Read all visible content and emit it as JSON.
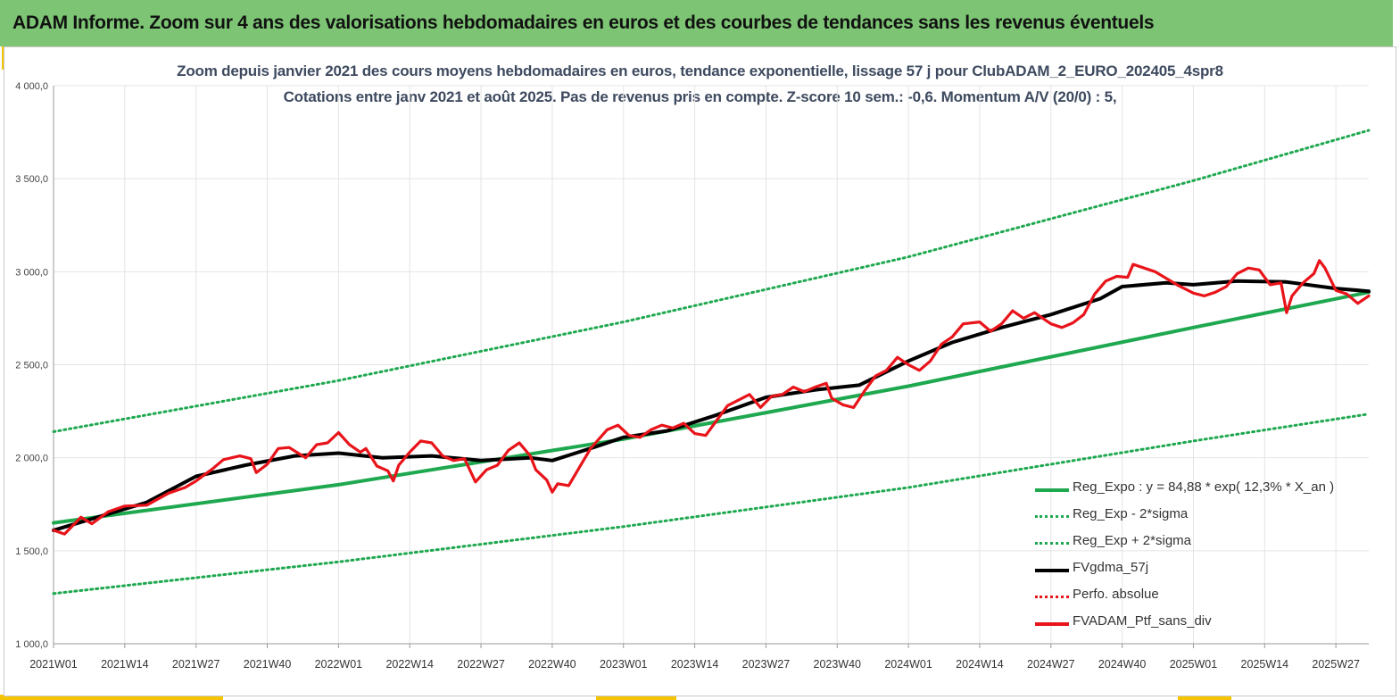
{
  "header": {
    "title": "ADAM Informe. Zoom sur 4 ans des valorisations hebdomadaires en euros et des courbes de tendances sans les revenus éventuels"
  },
  "colors": {
    "banner": "#7dc574",
    "accent": "#f5c400",
    "trend_green": "#1ea84f",
    "black_ma": "#000000",
    "red_series": "#e8141a"
  },
  "chart_data": {
    "type": "line",
    "title_line1": "Zoom depuis janvier 2021 des cours moyens hebdomadaires en euros, tendance exponentielle, lissage 57 j pour ClubADAM_2_EURO_202405_4spr8",
    "title_line2": "Cotations entre janv 2021 et août 2025. Pas de revenus pris en compte. Z-score 10 sem.: -0,6. Momentum A/V (20/0) : 5,",
    "ylim": [
      1000,
      4000
    ],
    "y_ticks": [
      "1 000,0",
      "1 500,0",
      "2 000,0",
      "2 500,0",
      "3 000,0",
      "3 500,0",
      "4 000,0"
    ],
    "x_ticks": [
      "2021W01",
      "2021W14",
      "2021W27",
      "2021W40",
      "2022W01",
      "2022W14",
      "2022W27",
      "2022W40",
      "2023W01",
      "2023W14",
      "2023W27",
      "2023W40",
      "2024W01",
      "2024W14",
      "2024W27",
      "2024W40",
      "2025W01",
      "2025W14",
      "2025W27"
    ],
    "x_start": "2021W01",
    "x_end": "2025W33",
    "grid": true,
    "legend_position": "bottom-right",
    "series": [
      {
        "name": "Reg_Expo : y = 84,88 * exp( 12,3% *  X_an )",
        "style": "solid-thick",
        "color": "#1ea84f",
        "points": [
          [
            "2021W01",
            1650
          ],
          [
            "2022W01",
            1855
          ],
          [
            "2023W01",
            2100
          ],
          [
            "2024W01",
            2385
          ],
          [
            "2025W01",
            2700
          ],
          [
            "2025W33",
            2890
          ]
        ]
      },
      {
        "name": "Reg_Exp - 2*sigma",
        "style": "dotted",
        "color": "#1ea84f",
        "points": [
          [
            "2021W01",
            1270
          ],
          [
            "2022W01",
            1440
          ],
          [
            "2023W01",
            1630
          ],
          [
            "2024W01",
            1840
          ],
          [
            "2025W01",
            2090
          ],
          [
            "2025W33",
            2235
          ]
        ]
      },
      {
        "name": "Reg_Exp + 2*sigma",
        "style": "dotted",
        "color": "#1ea84f",
        "points": [
          [
            "2021W01",
            2140
          ],
          [
            "2022W01",
            2415
          ],
          [
            "2023W01",
            2730
          ],
          [
            "2024W01",
            3080
          ],
          [
            "2025W01",
            3490
          ],
          [
            "2025W33",
            3760
          ]
        ]
      },
      {
        "name": "FVgdma_57j",
        "style": "solid-thick",
        "color": "#000000",
        "points": [
          [
            "2021W01",
            1610
          ],
          [
            "2021W09",
            1680
          ],
          [
            "2021W18",
            1760
          ],
          [
            "2021W27",
            1900
          ],
          [
            "2021W36",
            1960
          ],
          [
            "2021W45",
            2010
          ],
          [
            "2022W01",
            2025
          ],
          [
            "2022W09",
            2000
          ],
          [
            "2022W18",
            2010
          ],
          [
            "2022W27",
            1985
          ],
          [
            "2022W36",
            2000
          ],
          [
            "2022W40",
            1985
          ],
          [
            "2022W48",
            2060
          ],
          [
            "2023W01",
            2110
          ],
          [
            "2023W09",
            2145
          ],
          [
            "2023W18",
            2230
          ],
          [
            "2023W27",
            2325
          ],
          [
            "2023W36",
            2365
          ],
          [
            "2023W44",
            2390
          ],
          [
            "2024W01",
            2520
          ],
          [
            "2024W09",
            2620
          ],
          [
            "2024W18",
            2700
          ],
          [
            "2024W27",
            2770
          ],
          [
            "2024W36",
            2855
          ],
          [
            "2024W40",
            2920
          ],
          [
            "2024W48",
            2940
          ],
          [
            "2025W01",
            2930
          ],
          [
            "2025W09",
            2950
          ],
          [
            "2025W18",
            2945
          ],
          [
            "2025W27",
            2910
          ],
          [
            "2025W33",
            2895
          ]
        ]
      },
      {
        "name": "Perfo. absolue",
        "style": "dotted",
        "color": "#e8141a",
        "points": []
      },
      {
        "name": "FVADAM_Ptf_sans_div",
        "style": "solid-thick",
        "color": "#e8141a",
        "points": [
          [
            "2021W01",
            1610
          ],
          [
            "2021W03",
            1590
          ],
          [
            "2021W06",
            1680
          ],
          [
            "2021W08",
            1645
          ],
          [
            "2021W11",
            1710
          ],
          [
            "2021W14",
            1740
          ],
          [
            "2021W18",
            1745
          ],
          [
            "2021W22",
            1810
          ],
          [
            "2021W25",
            1840
          ],
          [
            "2021W27",
            1875
          ],
          [
            "2021W30",
            1940
          ],
          [
            "2021W32",
            1990
          ],
          [
            "2021W35",
            2010
          ],
          [
            "2021W37",
            1995
          ],
          [
            "2021W38",
            1920
          ],
          [
            "2021W40",
            1965
          ],
          [
            "2021W42",
            2050
          ],
          [
            "2021W44",
            2055
          ],
          [
            "2021W47",
            2000
          ],
          [
            "2021W49",
            2070
          ],
          [
            "2021W51",
            2080
          ],
          [
            "2022W01",
            2135
          ],
          [
            "2022W03",
            2070
          ],
          [
            "2022W05",
            2030
          ],
          [
            "2022W06",
            2050
          ],
          [
            "2022W08",
            1955
          ],
          [
            "2022W10",
            1930
          ],
          [
            "2022W11",
            1875
          ],
          [
            "2022W12",
            1960
          ],
          [
            "2022W14",
            2030
          ],
          [
            "2022W16",
            2090
          ],
          [
            "2022W18",
            2080
          ],
          [
            "2022W20",
            2010
          ],
          [
            "2022W22",
            1985
          ],
          [
            "2022W24",
            1995
          ],
          [
            "2022W26",
            1870
          ],
          [
            "2022W28",
            1935
          ],
          [
            "2022W30",
            1960
          ],
          [
            "2022W32",
            2040
          ],
          [
            "2022W34",
            2080
          ],
          [
            "2022W36",
            2010
          ],
          [
            "2022W37",
            1935
          ],
          [
            "2022W39",
            1880
          ],
          [
            "2022W40",
            1815
          ],
          [
            "2022W41",
            1860
          ],
          [
            "2022W43",
            1850
          ],
          [
            "2022W45",
            1950
          ],
          [
            "2022W47",
            2050
          ],
          [
            "2022W50",
            2150
          ],
          [
            "2022W52",
            2175
          ],
          [
            "2023W02",
            2120
          ],
          [
            "2023W04",
            2110
          ],
          [
            "2023W06",
            2150
          ],
          [
            "2023W08",
            2175
          ],
          [
            "2023W10",
            2160
          ],
          [
            "2023W12",
            2185
          ],
          [
            "2023W14",
            2130
          ],
          [
            "2023W16",
            2120
          ],
          [
            "2023W18",
            2200
          ],
          [
            "2023W20",
            2280
          ],
          [
            "2023W22",
            2310
          ],
          [
            "2023W24",
            2340
          ],
          [
            "2023W26",
            2270
          ],
          [
            "2023W28",
            2330
          ],
          [
            "2023W30",
            2340
          ],
          [
            "2023W32",
            2380
          ],
          [
            "2023W34",
            2355
          ],
          [
            "2023W36",
            2380
          ],
          [
            "2023W38",
            2400
          ],
          [
            "2023W39",
            2320
          ],
          [
            "2023W41",
            2285
          ],
          [
            "2023W43",
            2270
          ],
          [
            "2023W45",
            2360
          ],
          [
            "2023W47",
            2440
          ],
          [
            "2023W49",
            2470
          ],
          [
            "2023W51",
            2540
          ],
          [
            "2024W01",
            2500
          ],
          [
            "2024W03",
            2470
          ],
          [
            "2024W05",
            2520
          ],
          [
            "2024W07",
            2610
          ],
          [
            "2024W09",
            2650
          ],
          [
            "2024W11",
            2720
          ],
          [
            "2024W14",
            2730
          ],
          [
            "2024W16",
            2680
          ],
          [
            "2024W18",
            2720
          ],
          [
            "2024W20",
            2790
          ],
          [
            "2024W22",
            2750
          ],
          [
            "2024W24",
            2780
          ],
          [
            "2024W27",
            2720
          ],
          [
            "2024W29",
            2700
          ],
          [
            "2024W31",
            2725
          ],
          [
            "2024W33",
            2770
          ],
          [
            "2024W35",
            2880
          ],
          [
            "2024W37",
            2950
          ],
          [
            "2024W39",
            2975
          ],
          [
            "2024W41",
            2970
          ],
          [
            "2024W42",
            3040
          ],
          [
            "2024W44",
            3020
          ],
          [
            "2024W46",
            3000
          ],
          [
            "2024W48",
            2965
          ],
          [
            "2024W50",
            2930
          ],
          [
            "2025W01",
            2885
          ],
          [
            "2025W03",
            2870
          ],
          [
            "2025W05",
            2890
          ],
          [
            "2025W07",
            2920
          ],
          [
            "2025W09",
            2990
          ],
          [
            "2025W11",
            3020
          ],
          [
            "2025W13",
            3010
          ],
          [
            "2025W15",
            2930
          ],
          [
            "2025W17",
            2940
          ],
          [
            "2025W18",
            2780
          ],
          [
            "2025W19",
            2870
          ],
          [
            "2025W21",
            2940
          ],
          [
            "2025W23",
            2990
          ],
          [
            "2025W24",
            3060
          ],
          [
            "2025W25",
            3020
          ],
          [
            "2025W27",
            2900
          ],
          [
            "2025W29",
            2880
          ],
          [
            "2025W31",
            2830
          ],
          [
            "2025W33",
            2870
          ]
        ]
      }
    ]
  }
}
